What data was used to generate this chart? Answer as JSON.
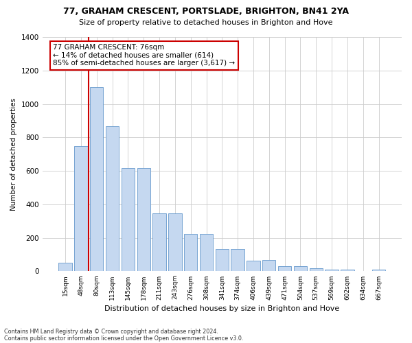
{
  "title1": "77, GRAHAM CRESCENT, PORTSLADE, BRIGHTON, BN41 2YA",
  "title2": "Size of property relative to detached houses in Brighton and Hove",
  "xlabel": "Distribution of detached houses by size in Brighton and Hove",
  "ylabel": "Number of detached properties",
  "bar_labels": [
    "15sqm",
    "48sqm",
    "80sqm",
    "113sqm",
    "145sqm",
    "178sqm",
    "211sqm",
    "243sqm",
    "276sqm",
    "308sqm",
    "341sqm",
    "374sqm",
    "406sqm",
    "439sqm",
    "471sqm",
    "504sqm",
    "537sqm",
    "569sqm",
    "602sqm",
    "634sqm",
    "667sqm"
  ],
  "bar_heights": [
    50,
    750,
    1100,
    865,
    615,
    615,
    345,
    345,
    225,
    225,
    135,
    135,
    65,
    68,
    30,
    30,
    20,
    10,
    10,
    0,
    10
  ],
  "bar_color": "#c5d8f0",
  "bar_edge_color": "#6699cc",
  "ylim": [
    0,
    1400
  ],
  "yticks": [
    0,
    200,
    400,
    600,
    800,
    1000,
    1200,
    1400
  ],
  "vline_color": "#cc0000",
  "annotation_title": "77 GRAHAM CRESCENT: 76sqm",
  "annotation_line1": "← 14% of detached houses are smaller (614)",
  "annotation_line2": "85% of semi-detached houses are larger (3,617) →",
  "annotation_box_color": "#cc0000",
  "footer1": "Contains HM Land Registry data © Crown copyright and database right 2024.",
  "footer2": "Contains public sector information licensed under the Open Government Licence v3.0.",
  "bg_color": "#ffffff",
  "plot_bg_color": "#ffffff",
  "grid_color": "#cccccc"
}
